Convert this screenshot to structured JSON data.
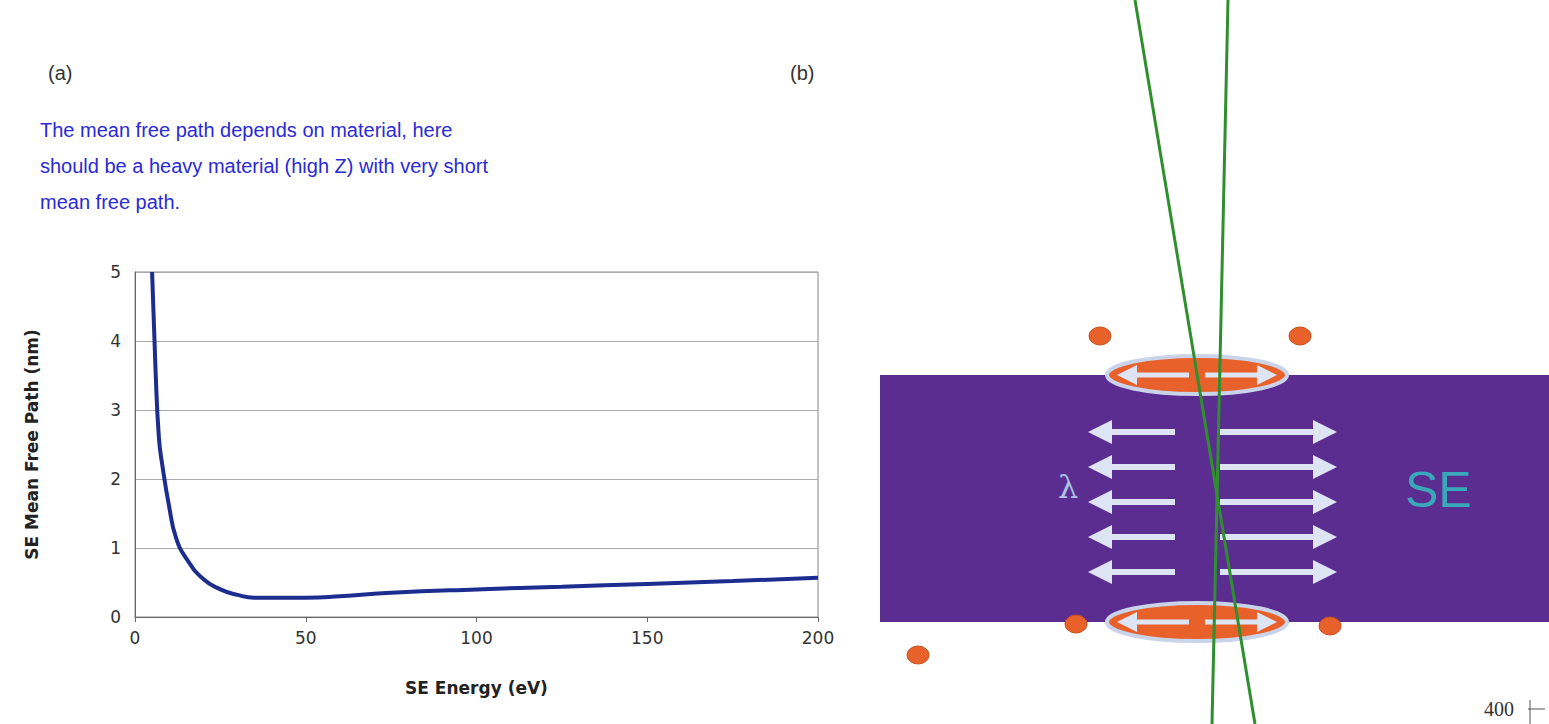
{
  "chart_data": {
    "type": "line",
    "panel_label": "(a)",
    "x_label": "SE Energy (eV)",
    "y_label": "SE Mean Free Path (nm)",
    "x": [
      5,
      6,
      7,
      8,
      10,
      12,
      15,
      20,
      25,
      30,
      35,
      50,
      60,
      75,
      100,
      125,
      150,
      175,
      200
    ],
    "values": [
      5,
      3.6,
      2.6,
      2.2,
      1.6,
      1.15,
      0.85,
      0.55,
      0.4,
      0.32,
      0.28,
      0.28,
      0.3,
      0.35,
      0.4,
      0.44,
      0.48,
      0.52,
      0.57
    ],
    "color": "#1c2d8f",
    "xlim": [
      0,
      200
    ],
    "xticks": [
      0,
      50,
      100,
      150,
      200
    ],
    "ylim": [
      0,
      5
    ],
    "yticks": [
      0,
      1,
      2,
      3,
      4,
      5
    ],
    "grid": true
  },
  "annotation": [
    "The mean free path depends on material, here",
    "should be a heavy material (high Z) with very short",
    "mean free path."
  ],
  "diagram": {
    "panel_label": "(b)",
    "labels": [
      "λ",
      "SE"
    ],
    "partial_axis_label": "400"
  }
}
